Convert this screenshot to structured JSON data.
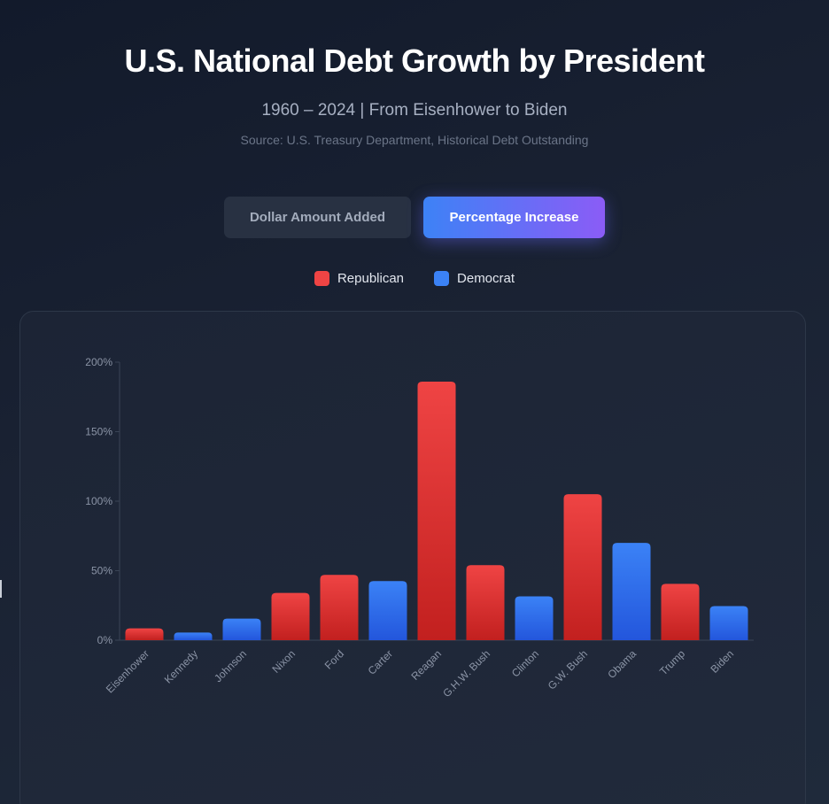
{
  "header": {
    "title": "U.S. National Debt Growth by President",
    "subtitle": "1960 – 2024 | From Eisenhower to Biden",
    "source": "Source: U.S. Treasury Department, Historical Debt Outstanding"
  },
  "toggle": {
    "dollar_label": "Dollar Amount Added",
    "percent_label": "Percentage Increase",
    "selected": "percent"
  },
  "legend": {
    "items": [
      {
        "label": "Republican",
        "color": "#ef4444"
      },
      {
        "label": "Democrat",
        "color": "#3b82f6"
      }
    ]
  },
  "colors": {
    "Republican": {
      "top": "#ef4444",
      "bottom": "#c2201f"
    },
    "Democrat": {
      "top": "#3b82f6",
      "bottom": "#2356dc"
    }
  },
  "chart_data": {
    "type": "bar",
    "categories": [
      "Eisenhower",
      "Kennedy",
      "Johnson",
      "Nixon",
      "Ford",
      "Carter",
      "Reagan",
      "G.H.W. Bush",
      "Clinton",
      "G.W. Bush",
      "Obama",
      "Trump",
      "Biden"
    ],
    "values": [
      8.5,
      5.5,
      15.5,
      34,
      47,
      42.5,
      186,
      54,
      31.5,
      105,
      70,
      40.5,
      24.5
    ],
    "party": [
      "Republican",
      "Democrat",
      "Democrat",
      "Republican",
      "Republican",
      "Democrat",
      "Republican",
      "Republican",
      "Democrat",
      "Republican",
      "Democrat",
      "Republican",
      "Democrat"
    ],
    "ylim": [
      0,
      200
    ],
    "yticks": [
      0,
      50,
      100,
      150,
      200
    ],
    "ytick_labels": [
      "0%",
      "50%",
      "100%",
      "150%",
      "200%"
    ],
    "grid": false,
    "legend_position": "top-center"
  }
}
